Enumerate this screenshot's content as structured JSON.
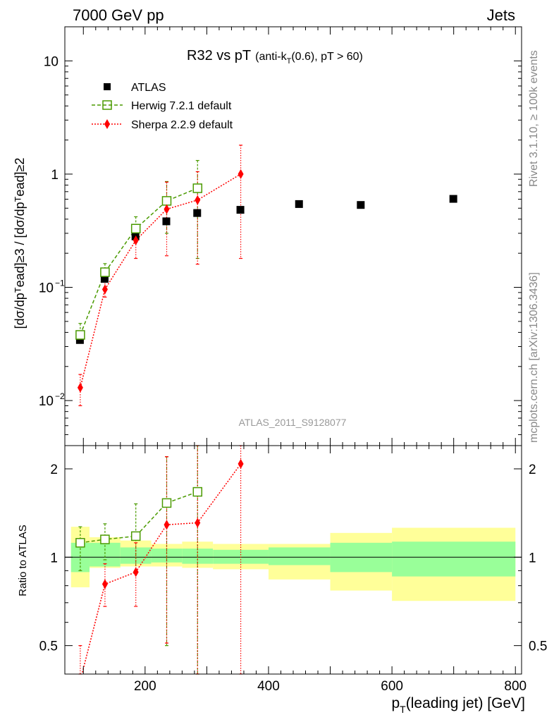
{
  "header": {
    "left": "7000 GeV pp",
    "right": "Jets",
    "side_top": "Rivet 3.1.10, ≥ 100k events",
    "side_bottom": "mcplots.cern.ch [arXiv:1306.3436]",
    "analysis_id": "ATLAS_2011_S9128077"
  },
  "main_plot": {
    "title_main": "R32 vs pT",
    "title_sub": "(anti-k",
    "title_sub_index": "T",
    "title_sub_rest": "(0.6), pT > 60)",
    "ylabel": "[dσ/dpᵀead]≥3 / [dσ/dpᵀead]≥2"
  },
  "ratio_plot": {
    "ylabel": "Ratio to ATLAS",
    "ytick_labels": [
      "0.5",
      "1",
      "2"
    ]
  },
  "xaxis": {
    "label": "p",
    "label_sub": "T",
    "label_rest": "(leading jet) [GeV]",
    "tick_labels": [
      "200",
      "400",
      "600",
      "800"
    ]
  },
  "legend": [
    "ATLAS",
    "Herwig 7.2.1 default",
    "Sherpa 2.2.9 default"
  ],
  "colors": {
    "atlas": "#000000",
    "herwig": "#4a9a00",
    "sherpa": "#ff0000",
    "band_inner": "#99ff99",
    "band_outer": "#ffff99"
  },
  "chart_data": {
    "type": "scatter",
    "x_scale": "linear",
    "y_scale": "log",
    "xlim": [
      70,
      810
    ],
    "ylim_main": [
      0.004,
      20
    ],
    "ylim_ratio": [
      0.4,
      2.4
    ],
    "series": [
      {
        "name": "ATLAS",
        "x": [
          95,
          135,
          185,
          235,
          285,
          355,
          450,
          550,
          700
        ],
        "y": [
          0.034,
          0.118,
          0.28,
          0.38,
          0.45,
          0.48,
          0.54,
          0.53,
          0.6
        ]
      },
      {
        "name": "Herwig 7.2.1 default",
        "x": [
          95,
          135,
          185,
          235,
          285
        ],
        "y": [
          0.038,
          0.136,
          0.33,
          0.58,
          0.75
        ],
        "err_low": [
          0.034,
          0.115,
          0.25,
          0.3,
          0.18
        ],
        "err_high": [
          0.048,
          0.162,
          0.42,
          0.86,
          1.32
        ]
      },
      {
        "name": "Sherpa 2.2.9 default",
        "x": [
          95,
          135,
          185,
          235,
          285,
          355
        ],
        "y": [
          0.013,
          0.096,
          0.26,
          0.49,
          0.59,
          1.0
        ],
        "err_low": [
          0.009,
          0.082,
          0.18,
          0.19,
          0.16,
          0.18
        ],
        "err_high": [
          0.017,
          0.12,
          0.34,
          0.85,
          1.05,
          1.8
        ]
      }
    ],
    "ratio": {
      "bins": [
        [
          80,
          110
        ],
        [
          110,
          160
        ],
        [
          160,
          210
        ],
        [
          210,
          260
        ],
        [
          260,
          310
        ],
        [
          310,
          400
        ],
        [
          400,
          500
        ],
        [
          500,
          600
        ],
        [
          600,
          800
        ]
      ],
      "band_inner": [
        [
          0.89,
          1.12
        ],
        [
          0.93,
          1.12
        ],
        [
          0.95,
          1.08
        ],
        [
          0.96,
          1.07
        ],
        [
          0.95,
          1.07
        ],
        [
          0.95,
          1.06
        ],
        [
          0.94,
          1.08
        ],
        [
          0.89,
          1.12
        ],
        [
          0.86,
          1.13
        ]
      ],
      "band_outer": [
        [
          0.79,
          1.27
        ],
        [
          0.92,
          1.17
        ],
        [
          0.93,
          1.14
        ],
        [
          0.93,
          1.11
        ],
        [
          0.92,
          1.13
        ],
        [
          0.91,
          1.11
        ],
        [
          0.84,
          1.11
        ],
        [
          0.77,
          1.21
        ],
        [
          0.71,
          1.26
        ]
      ],
      "herwig": {
        "x": [
          95,
          135,
          185,
          235,
          285
        ],
        "y": [
          1.12,
          1.15,
          1.18,
          1.53,
          1.67
        ],
        "err_low": [
          0.9,
          0.98,
          0.9,
          0.5,
          0.4
        ],
        "err_high": [
          1.27,
          1.3,
          1.52,
          2.2,
          2.4
        ]
      },
      "sherpa": {
        "x": [
          95,
          135,
          185,
          235,
          285,
          355
        ],
        "y": [
          0.38,
          0.81,
          0.89,
          1.29,
          1.31,
          2.08
        ],
        "err_low": [
          0.3,
          0.68,
          0.68,
          0.51,
          0.4,
          0.4
        ],
        "err_high": [
          0.5,
          0.95,
          1.12,
          2.2,
          2.4,
          2.4
        ]
      }
    }
  }
}
